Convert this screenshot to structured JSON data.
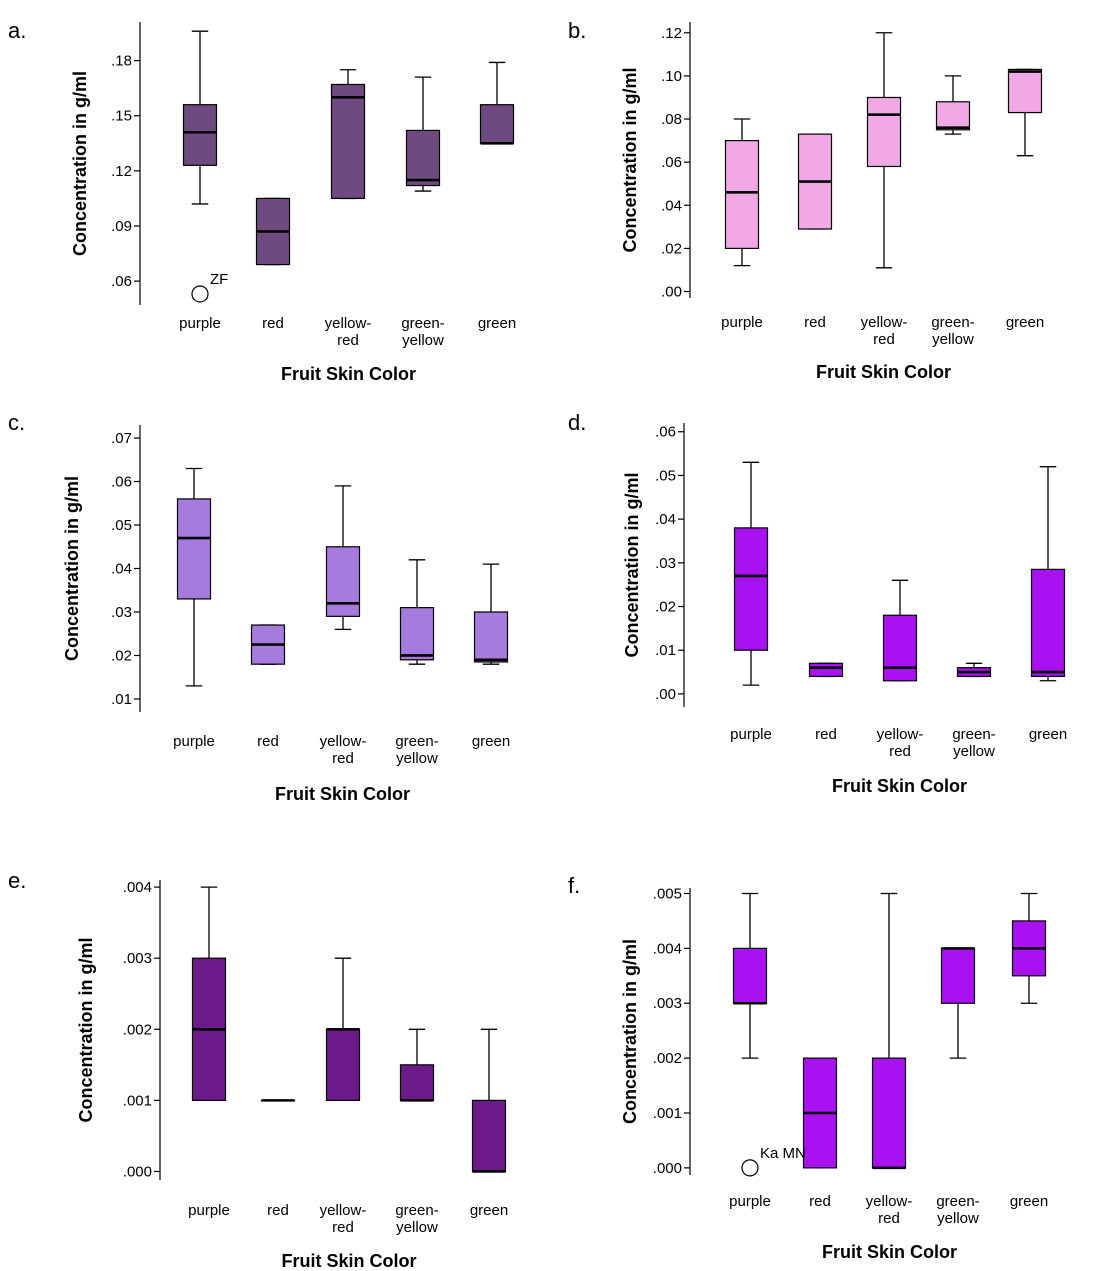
{
  "chart_data": [
    {
      "panel": "a.",
      "type": "boxplot",
      "xlabel": "Fruit Skin Color",
      "ylabel": "Concentration in g/ml",
      "categories": [
        "purple",
        "red",
        "yellow-red",
        "green-yellow",
        "green"
      ],
      "ylim": [
        0.047,
        0.201
      ],
      "yticks": [
        0.06,
        0.09,
        0.12,
        0.15,
        0.18
      ],
      "ytick_labels": [
        ".06",
        ".09",
        ".12",
        ".15",
        ".18"
      ],
      "color": "#6e4a80",
      "boxes": [
        {
          "whisker_low": 0.102,
          "q1": 0.123,
          "median": 0.141,
          "q3": 0.156,
          "whisker_high": 0.196
        },
        {
          "whisker_low": 0.069,
          "q1": 0.069,
          "median": 0.087,
          "q3": 0.105,
          "whisker_high": 0.105
        },
        {
          "whisker_low": 0.105,
          "q1": 0.105,
          "median": 0.16,
          "q3": 0.167,
          "whisker_high": 0.175
        },
        {
          "whisker_low": 0.109,
          "q1": 0.112,
          "median": 0.115,
          "q3": 0.142,
          "whisker_high": 0.171
        },
        {
          "whisker_low": 0.135,
          "q1": 0.135,
          "median": 0.135,
          "q3": 0.156,
          "whisker_high": 0.179
        }
      ],
      "outliers": [
        {
          "category": "purple",
          "value": 0.053,
          "label": "ZF"
        }
      ]
    },
    {
      "panel": "b.",
      "type": "boxplot",
      "xlabel": "Fruit Skin Color",
      "ylabel": "Concentration in g/ml",
      "categories": [
        "purple",
        "red",
        "yellow-red",
        "green-yellow",
        "green"
      ],
      "ylim": [
        -0.003,
        0.125
      ],
      "yticks": [
        0.0,
        0.02,
        0.04,
        0.06,
        0.08,
        0.1,
        0.12
      ],
      "ytick_labels": [
        ".00",
        ".02",
        ".04",
        ".06",
        ".08",
        ".10",
        ".12"
      ],
      "color": "#f0a8e6",
      "boxes": [
        {
          "whisker_low": 0.012,
          "q1": 0.02,
          "median": 0.046,
          "q3": 0.07,
          "whisker_high": 0.08
        },
        {
          "whisker_low": 0.029,
          "q1": 0.029,
          "median": 0.051,
          "q3": 0.073,
          "whisker_high": 0.073
        },
        {
          "whisker_low": 0.011,
          "q1": 0.058,
          "median": 0.082,
          "q3": 0.09,
          "whisker_high": 0.12
        },
        {
          "whisker_low": 0.073,
          "q1": 0.075,
          "median": 0.076,
          "q3": 0.088,
          "whisker_high": 0.1
        },
        {
          "whisker_low": 0.063,
          "q1": 0.083,
          "median": 0.102,
          "q3": 0.103,
          "whisker_high": 0.103
        }
      ],
      "outliers": []
    },
    {
      "panel": "c.",
      "type": "boxplot",
      "xlabel": "Fruit Skin Color",
      "ylabel": "Concentration in g/ml",
      "categories": [
        "purple",
        "red",
        "yellow-red",
        "green-yellow",
        "green"
      ],
      "ylim": [
        0.007,
        0.073
      ],
      "yticks": [
        0.01,
        0.02,
        0.03,
        0.04,
        0.05,
        0.06,
        0.07
      ],
      "ytick_labels": [
        ".01",
        ".02",
        ".03",
        ".04",
        ".05",
        ".06",
        ".07"
      ],
      "color": "#a77bdd",
      "boxes": [
        {
          "whisker_low": 0.013,
          "q1": 0.033,
          "median": 0.047,
          "q3": 0.056,
          "whisker_high": 0.063
        },
        {
          "whisker_low": 0.018,
          "q1": 0.018,
          "median": 0.0225,
          "q3": 0.027,
          "whisker_high": 0.027
        },
        {
          "whisker_low": 0.026,
          "q1": 0.029,
          "median": 0.032,
          "q3": 0.045,
          "whisker_high": 0.059
        },
        {
          "whisker_low": 0.018,
          "q1": 0.019,
          "median": 0.02,
          "q3": 0.031,
          "whisker_high": 0.042
        },
        {
          "whisker_low": 0.018,
          "q1": 0.0185,
          "median": 0.019,
          "q3": 0.03,
          "whisker_high": 0.041
        }
      ],
      "outliers": []
    },
    {
      "panel": "d.",
      "type": "boxplot",
      "xlabel": "Fruit Skin Color",
      "ylabel": "Concentration in g/ml",
      "categories": [
        "purple",
        "red",
        "yellow-red",
        "green-yellow",
        "green"
      ],
      "ylim": [
        -0.003,
        0.062
      ],
      "yticks": [
        0.0,
        0.01,
        0.02,
        0.03,
        0.04,
        0.05,
        0.06
      ],
      "ytick_labels": [
        ".00",
        ".01",
        ".02",
        ".03",
        ".04",
        ".05",
        ".06"
      ],
      "color": "#a812f0",
      "boxes": [
        {
          "whisker_low": 0.002,
          "q1": 0.01,
          "median": 0.027,
          "q3": 0.038,
          "whisker_high": 0.053
        },
        {
          "whisker_low": 0.004,
          "q1": 0.004,
          "median": 0.006,
          "q3": 0.007,
          "whisker_high": 0.007
        },
        {
          "whisker_low": 0.003,
          "q1": 0.003,
          "median": 0.006,
          "q3": 0.018,
          "whisker_high": 0.026
        },
        {
          "whisker_low": 0.004,
          "q1": 0.004,
          "median": 0.005,
          "q3": 0.006,
          "whisker_high": 0.007
        },
        {
          "whisker_low": 0.003,
          "q1": 0.004,
          "median": 0.005,
          "q3": 0.0285,
          "whisker_high": 0.052
        }
      ],
      "outliers": []
    },
    {
      "panel": "e.",
      "type": "boxplot",
      "xlabel": "Fruit Skin Color",
      "ylabel": "Concentration in g/ml",
      "categories": [
        "purple",
        "red",
        "yellow-red",
        "green-yellow",
        "green"
      ],
      "ylim": [
        -0.00012,
        0.0041
      ],
      "yticks": [
        0.0,
        0.001,
        0.002,
        0.003,
        0.004
      ],
      "ytick_labels": [
        ".000",
        ".001",
        ".002",
        ".003",
        ".004"
      ],
      "color": "#6b1a8a",
      "boxes": [
        {
          "whisker_low": 0.001,
          "q1": 0.001,
          "median": 0.002,
          "q3": 0.003,
          "whisker_high": 0.004
        },
        {
          "whisker_low": 0.001,
          "q1": 0.001,
          "median": 0.001,
          "q3": 0.001,
          "whisker_high": 0.001
        },
        {
          "whisker_low": 0.001,
          "q1": 0.001,
          "median": 0.002,
          "q3": 0.002,
          "whisker_high": 0.003
        },
        {
          "whisker_low": 0.001,
          "q1": 0.001,
          "median": 0.001,
          "q3": 0.0015,
          "whisker_high": 0.002
        },
        {
          "whisker_low": 0.0,
          "q1": 0.0,
          "median": 0.0,
          "q3": 0.001,
          "whisker_high": 0.002
        }
      ],
      "outliers": []
    },
    {
      "panel": "f.",
      "type": "boxplot",
      "xlabel": "Fruit Skin Color",
      "ylabel": "Concentration in g/ml",
      "categories": [
        "purple",
        "red",
        "yellow-red",
        "green-yellow",
        "green"
      ],
      "ylim": [
        -0.00013,
        0.0051
      ],
      "yticks": [
        0.0,
        0.001,
        0.002,
        0.003,
        0.004,
        0.005
      ],
      "ytick_labels": [
        ".000",
        ".001",
        ".002",
        ".003",
        ".004",
        ".005"
      ],
      "color": "#a812f0",
      "boxes": [
        {
          "whisker_low": 0.002,
          "q1": 0.003,
          "median": 0.003,
          "q3": 0.004,
          "whisker_high": 0.005
        },
        {
          "whisker_low": 0.0,
          "q1": 0.0,
          "median": 0.001,
          "q3": 0.002,
          "whisker_high": 0.002
        },
        {
          "whisker_low": 0.0,
          "q1": 0.0,
          "median": 0.0,
          "q3": 0.002,
          "whisker_high": 0.005
        },
        {
          "whisker_low": 0.002,
          "q1": 0.003,
          "median": 0.004,
          "q3": 0.004,
          "whisker_high": 0.004
        },
        {
          "whisker_low": 0.003,
          "q1": 0.0035,
          "median": 0.004,
          "q3": 0.0045,
          "whisker_high": 0.005
        }
      ],
      "outliers": [
        {
          "category": "purple",
          "value": 0.0,
          "label": "Ka MN"
        }
      ]
    }
  ]
}
